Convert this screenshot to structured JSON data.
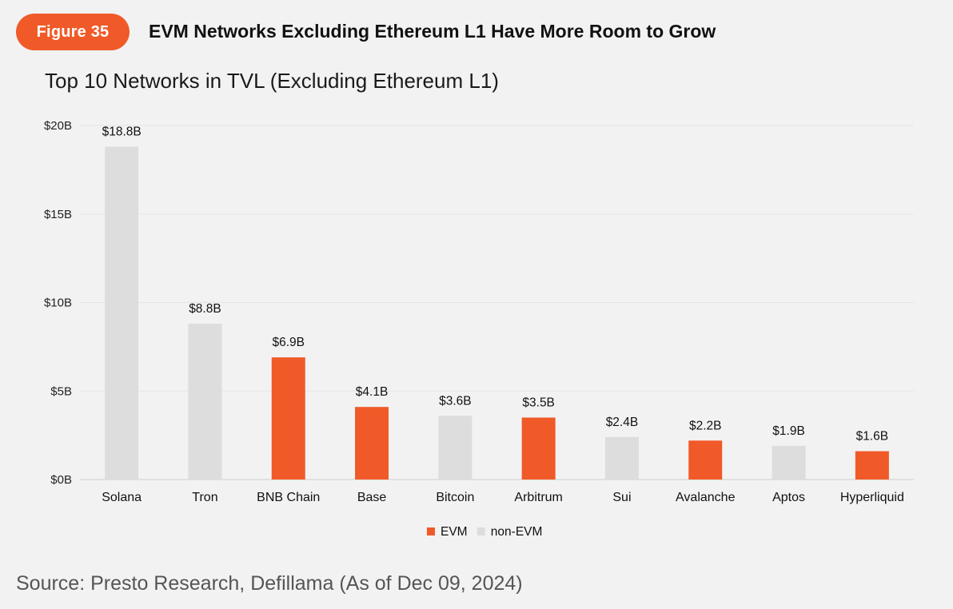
{
  "header": {
    "figure_label": "Figure 35",
    "title": "EVM Networks Excluding Ethereum L1 Have More Room to Grow"
  },
  "chart_data": {
    "type": "bar",
    "title": "Top 10 Networks in TVL (Excluding Ethereum L1)",
    "xlabel": "",
    "ylabel": "",
    "ylim": [
      0,
      20
    ],
    "yticks": [
      0,
      5,
      10,
      15,
      20
    ],
    "ytick_labels": [
      "$0B",
      "$5B",
      "$10B",
      "$15B",
      "$20B"
    ],
    "categories": [
      "Solana",
      "Tron",
      "BNB Chain",
      "Base",
      "Bitcoin",
      "Arbitrum",
      "Sui",
      "Avalanche",
      "Aptos",
      "Hyperliquid"
    ],
    "values": [
      18.8,
      8.8,
      6.9,
      4.1,
      3.6,
      3.5,
      2.4,
      2.2,
      1.9,
      1.6
    ],
    "value_labels": [
      "$18.8B",
      "$8.8B",
      "$6.9B",
      "$4.1B",
      "$3.6B",
      "$3.5B",
      "$2.4B",
      "$2.2B",
      "$1.9B",
      "$1.6B"
    ],
    "groups": [
      "non-EVM",
      "non-EVM",
      "EVM",
      "EVM",
      "non-EVM",
      "EVM",
      "non-EVM",
      "EVM",
      "non-EVM",
      "EVM"
    ],
    "legend": [
      {
        "name": "EVM",
        "color": "#f05a28"
      },
      {
        "name": "non-EVM",
        "color": "#dddddd"
      }
    ],
    "legend_position": "bottom",
    "grid": true
  },
  "footer": {
    "source": "Source: Presto Research, Defillama (As of Dec 09, 2024)"
  }
}
